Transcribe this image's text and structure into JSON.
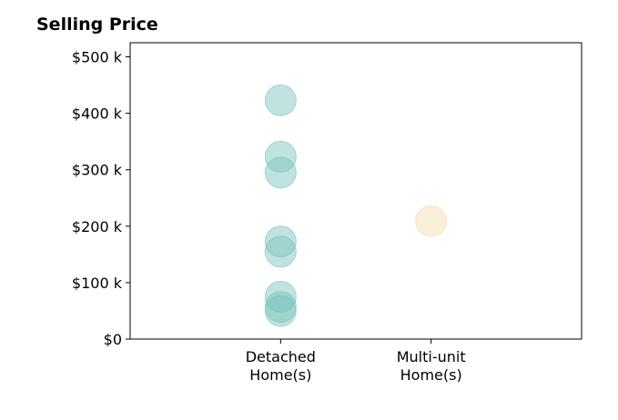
{
  "chart_data": {
    "type": "scatter",
    "title": "Selling Price",
    "xlabel": "",
    "ylabel": "",
    "categories": [
      "Detached\nHome(s)",
      "Multi-unit\nHome(s)"
    ],
    "yticks": [
      0,
      100000,
      200000,
      300000,
      400000,
      500000
    ],
    "ytick_labels": [
      "$0",
      "$100 k",
      "$200 k",
      "$300 k",
      "$400 k",
      "$500 k"
    ],
    "ylim": [
      0,
      525000
    ],
    "xlim": [
      -1,
      2
    ],
    "grid": false,
    "series": [
      {
        "category_index": 0,
        "color": "#76c2bb",
        "values": [
          423000,
          323000,
          295000,
          173000,
          155000,
          75000,
          57000,
          50000
        ]
      },
      {
        "category_index": 1,
        "color": "#f4deaa",
        "values": [
          209000
        ]
      }
    ]
  }
}
